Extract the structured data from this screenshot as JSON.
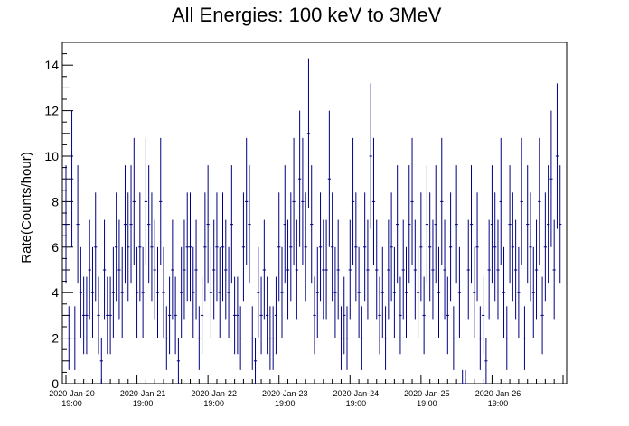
{
  "chart_data": {
    "type": "scatter",
    "title": "All Energies:  100 keV to 3MeV",
    "xlabel": "",
    "ylabel": "Rate(Counts/hour)",
    "xlim_hours": [
      0,
      168
    ],
    "ylim": [
      0,
      15
    ],
    "yticks": [
      0,
      2,
      4,
      6,
      8,
      10,
      12,
      14
    ],
    "xtick_labels": [
      {
        "date": "2020-Jan-20",
        "time": "19:00"
      },
      {
        "date": "2020-Jan-21",
        "time": "19:00"
      },
      {
        "date": "2020-Jan-22",
        "time": "19:00"
      },
      {
        "date": "2020-Jan-23",
        "time": "19:00"
      },
      {
        "date": "2020-Jan-24",
        "time": "19:00"
      },
      {
        "date": "2020-Jan-25",
        "time": "19:00"
      },
      {
        "date": "2020-Jan-26",
        "time": "19:00"
      }
    ],
    "series_color": "#000080",
    "x_hours": [
      0,
      1,
      2,
      3,
      4,
      5,
      6,
      7,
      8,
      9,
      10,
      11,
      12,
      13,
      14,
      15,
      16,
      17,
      18,
      19,
      20,
      21,
      22,
      23,
      24,
      25,
      26,
      27,
      28,
      29,
      30,
      31,
      32,
      33,
      34,
      35,
      36,
      37,
      38,
      39,
      40,
      41,
      42,
      43,
      44,
      45,
      46,
      47,
      48,
      49,
      50,
      51,
      52,
      53,
      54,
      55,
      56,
      57,
      58,
      59,
      60,
      61,
      62,
      63,
      64,
      65,
      66,
      67,
      68,
      69,
      70,
      71,
      72,
      73,
      74,
      75,
      76,
      77,
      78,
      79,
      80,
      81,
      82,
      83,
      84,
      85,
      86,
      87,
      88,
      89,
      90,
      91,
      92,
      93,
      94,
      95,
      96,
      97,
      98,
      99,
      100,
      101,
      102,
      103,
      104,
      105,
      106,
      107,
      108,
      109,
      110,
      111,
      112,
      113,
      114,
      115,
      116,
      117,
      118,
      119,
      120,
      121,
      122,
      123,
      124,
      125,
      126,
      127,
      128,
      129,
      130,
      131,
      132,
      133,
      134,
      135,
      136,
      137,
      138,
      139,
      140,
      141,
      142,
      143,
      144,
      145,
      146,
      147,
      148,
      149,
      150,
      151,
      152,
      153,
      154,
      155,
      156,
      157,
      158,
      159,
      160,
      161,
      162,
      163,
      164,
      165,
      166,
      167
    ],
    "values": [
      7,
      2,
      9,
      2,
      7,
      4,
      3,
      3,
      5,
      4,
      6,
      3,
      1,
      5,
      3,
      3,
      4,
      6,
      5,
      4,
      7,
      6,
      7,
      8,
      4,
      6,
      4,
      8,
      7,
      6,
      5,
      4,
      8,
      4,
      2,
      3,
      5,
      3,
      1,
      4,
      5,
      6,
      6,
      4,
      5,
      2,
      3,
      6,
      7,
      4,
      5,
      6,
      4,
      6,
      5,
      4,
      7,
      3,
      3,
      2,
      6,
      8,
      7,
      2,
      1,
      4,
      3,
      5,
      3,
      2,
      2,
      3,
      6,
      4,
      7,
      5,
      6,
      8,
      5,
      9,
      8,
      6,
      11,
      7,
      3,
      4,
      6,
      5,
      5,
      9,
      6,
      4,
      5,
      2,
      3,
      2,
      5,
      8,
      6,
      4,
      2,
      6,
      5,
      10,
      8,
      5,
      3,
      4,
      2,
      5,
      6,
      4,
      7,
      3,
      5,
      4,
      7,
      8,
      5,
      4,
      6,
      3,
      7,
      6,
      5,
      7,
      4,
      8,
      5,
      3,
      6,
      2,
      7,
      4,
      0,
      0,
      5,
      7,
      4,
      6,
      2,
      3,
      1,
      5,
      7,
      6,
      5,
      8,
      4,
      2,
      7,
      6,
      5,
      4,
      8,
      2,
      7,
      6,
      4,
      5,
      8,
      3,
      6,
      7,
      9,
      5,
      10,
      7
    ],
    "errors": [
      2.6,
      1.4,
      3.0,
      1.4,
      2.6,
      2.0,
      1.7,
      1.7,
      2.2,
      2.0,
      2.4,
      1.7,
      1.0,
      2.2,
      1.7,
      1.7,
      2.0,
      2.4,
      2.2,
      2.0,
      2.6,
      2.4,
      2.6,
      2.8,
      2.0,
      2.4,
      2.0,
      2.8,
      2.6,
      2.4,
      2.2,
      2.0,
      2.8,
      2.0,
      1.4,
      1.7,
      2.2,
      1.7,
      1.0,
      2.0,
      2.2,
      2.4,
      2.4,
      2.0,
      2.2,
      1.4,
      1.7,
      2.4,
      2.6,
      2.0,
      2.2,
      2.4,
      2.0,
      2.4,
      2.2,
      2.0,
      2.6,
      1.7,
      1.7,
      1.4,
      2.4,
      2.8,
      2.6,
      1.4,
      1.0,
      2.0,
      1.7,
      2.2,
      1.7,
      1.4,
      1.4,
      1.7,
      2.4,
      2.0,
      2.6,
      2.2,
      2.4,
      2.8,
      2.2,
      3.0,
      2.8,
      2.4,
      3.3,
      2.6,
      1.7,
      2.0,
      2.4,
      2.2,
      2.2,
      3.0,
      2.4,
      2.0,
      2.2,
      1.4,
      1.7,
      1.4,
      2.2,
      2.8,
      2.4,
      2.0,
      1.4,
      2.4,
      2.2,
      3.2,
      2.8,
      2.2,
      1.7,
      2.0,
      1.4,
      2.2,
      2.4,
      2.0,
      2.6,
      1.7,
      2.2,
      2.0,
      2.6,
      2.8,
      2.2,
      2.0,
      2.4,
      1.7,
      2.6,
      2.4,
      2.2,
      2.6,
      2.0,
      2.8,
      2.2,
      1.7,
      2.4,
      1.4,
      2.6,
      2.0,
      0.6,
      0.6,
      2.2,
      2.6,
      2.0,
      2.4,
      1.4,
      1.7,
      1.0,
      2.2,
      2.6,
      2.4,
      2.2,
      2.8,
      2.0,
      1.4,
      2.6,
      2.4,
      2.2,
      2.0,
      2.8,
      1.4,
      2.6,
      2.4,
      2.0,
      2.2,
      2.8,
      1.7,
      2.4,
      2.6,
      3.0,
      2.2,
      3.2,
      2.6
    ]
  }
}
